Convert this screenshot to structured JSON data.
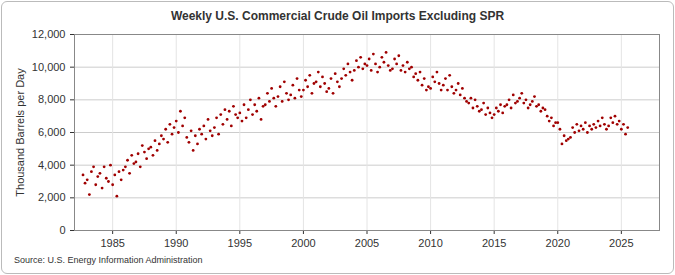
{
  "chart_data": {
    "type": "scatter",
    "title": "Weekly U.S. Commercial Crude Oil Imports Excluding SPR",
    "y_label": "Thousand Barrels per Day",
    "source": "Source: U.S. Energy Information Administration",
    "color": "#a00000",
    "marker": "circle",
    "grid": true,
    "xlim": [
      1982,
      2028
    ],
    "xticks": [
      1985,
      1990,
      1995,
      2000,
      2005,
      2010,
      2015,
      2020,
      2025
    ],
    "ylim": [
      0,
      12000
    ],
    "yticks": [
      0,
      {
        "value": 2000,
        "label": "2,000"
      },
      {
        "value": 4000,
        "label": "4,000"
      },
      {
        "value": 6000,
        "label": "6,000"
      },
      {
        "value": 8000,
        "label": "8,000"
      },
      {
        "value": 10000,
        "label": "10,000"
      },
      {
        "value": 12000,
        "label": "12,000"
      }
    ],
    "x": [
      1982.67,
      1982.83,
      1983,
      1983.17,
      1983.33,
      1983.5,
      1983.67,
      1983.83,
      1984,
      1984.17,
      1984.33,
      1984.5,
      1984.67,
      1984.83,
      1985,
      1985.17,
      1985.33,
      1985.5,
      1985.67,
      1985.83,
      1986,
      1986.17,
      1986.33,
      1986.5,
      1986.67,
      1986.83,
      1987,
      1987.17,
      1987.33,
      1987.5,
      1987.67,
      1987.83,
      1988,
      1988.17,
      1988.33,
      1988.5,
      1988.67,
      1988.83,
      1989,
      1989.17,
      1989.33,
      1989.5,
      1989.67,
      1989.83,
      1990,
      1990.17,
      1990.33,
      1990.5,
      1990.67,
      1990.83,
      1991,
      1991.17,
      1991.33,
      1991.5,
      1991.67,
      1991.83,
      1992,
      1992.17,
      1992.33,
      1992.5,
      1992.67,
      1992.83,
      1993,
      1993.17,
      1993.33,
      1993.5,
      1993.67,
      1993.83,
      1994,
      1994.17,
      1994.33,
      1994.5,
      1994.67,
      1994.83,
      1995,
      1995.17,
      1995.33,
      1995.5,
      1995.67,
      1995.83,
      1996,
      1996.17,
      1996.33,
      1996.5,
      1996.67,
      1996.83,
      1997,
      1997.17,
      1997.33,
      1997.5,
      1997.67,
      1997.83,
      1998,
      1998.17,
      1998.33,
      1998.5,
      1998.67,
      1998.83,
      1999,
      1999.17,
      1999.33,
      1999.5,
      1999.67,
      1999.83,
      2000,
      2000.17,
      2000.33,
      2000.5,
      2000.67,
      2000.83,
      2001,
      2001.17,
      2001.33,
      2001.5,
      2001.67,
      2001.83,
      2002,
      2002.17,
      2002.33,
      2002.5,
      2002.67,
      2002.83,
      2003,
      2003.17,
      2003.33,
      2003.5,
      2003.67,
      2003.83,
      2004,
      2004.17,
      2004.33,
      2004.5,
      2004.67,
      2004.83,
      2005,
      2005.17,
      2005.33,
      2005.5,
      2005.67,
      2005.83,
      2006,
      2006.17,
      2006.33,
      2006.5,
      2006.67,
      2006.83,
      2007,
      2007.17,
      2007.33,
      2007.5,
      2007.67,
      2007.83,
      2008,
      2008.17,
      2008.33,
      2008.5,
      2008.67,
      2008.83,
      2009,
      2009.17,
      2009.33,
      2009.5,
      2009.67,
      2009.83,
      2010,
      2010.17,
      2010.33,
      2010.5,
      2010.67,
      2010.83,
      2011,
      2011.17,
      2011.33,
      2011.5,
      2011.67,
      2011.83,
      2012,
      2012.17,
      2012.33,
      2012.5,
      2012.67,
      2012.83,
      2013,
      2013.17,
      2013.33,
      2013.5,
      2013.67,
      2013.83,
      2014,
      2014.17,
      2014.33,
      2014.5,
      2014.67,
      2014.83,
      2015,
      2015.17,
      2015.33,
      2015.5,
      2015.67,
      2015.83,
      2016,
      2016.17,
      2016.33,
      2016.5,
      2016.67,
      2016.83,
      2017,
      2017.17,
      2017.33,
      2017.5,
      2017.67,
      2017.83,
      2018,
      2018.17,
      2018.33,
      2018.5,
      2018.67,
      2018.83,
      2019,
      2019.17,
      2019.33,
      2019.5,
      2019.67,
      2019.83,
      2020,
      2020.17,
      2020.33,
      2020.5,
      2020.67,
      2020.83,
      2021,
      2021.17,
      2021.33,
      2021.5,
      2021.67,
      2021.83,
      2022,
      2022.17,
      2022.33,
      2022.5,
      2022.67,
      2022.83,
      2023,
      2023.17,
      2023.33,
      2023.5,
      2023.67,
      2023.83,
      2024,
      2024.17,
      2024.33,
      2024.5,
      2024.67,
      2024.83,
      2025,
      2025.17,
      2025.33,
      2025.5
    ],
    "values": [
      3400,
      2900,
      3100,
      2200,
      3600,
      3900,
      2800,
      3300,
      3500,
      2600,
      3900,
      3200,
      3000,
      4000,
      2800,
      3400,
      2100,
      3600,
      3100,
      3700,
      3900,
      4300,
      3500,
      4600,
      4100,
      4200,
      4700,
      3900,
      5200,
      4800,
      4400,
      5000,
      5100,
      4600,
      5500,
      4900,
      5300,
      5800,
      5600,
      6200,
      5400,
      6500,
      5900,
      6300,
      6700,
      6000,
      7300,
      6400,
      6900,
      5700,
      5400,
      6100,
      4900,
      5800,
      5300,
      6200,
      5900,
      6400,
      5600,
      6800,
      6100,
      5800,
      6300,
      6900,
      5900,
      7100,
      6500,
      7400,
      6800,
      7300,
      6400,
      7600,
      7100,
      6900,
      7200,
      6700,
      7700,
      6900,
      7400,
      8000,
      7100,
      7700,
      7300,
      8100,
      6800,
      7600,
      7700,
      8400,
      7900,
      8700,
      8100,
      7600,
      8200,
      8800,
      7900,
      9100,
      8400,
      8000,
      8300,
      8900,
      8100,
      9300,
      8600,
      8200,
      8600,
      9200,
      8800,
      9500,
      8400,
      9000,
      9100,
      9700,
      8800,
      9400,
      9000,
      8500,
      8700,
      9300,
      8400,
      9600,
      9100,
      8800,
      9300,
      9900,
      9500,
      10200,
      9700,
      9200,
      9800,
      10400,
      10000,
      10600,
      9900,
      10200,
      10100,
      10500,
      9800,
      10800,
      10200,
      9700,
      10000,
      10600,
      10300,
      10900,
      10100,
      9800,
      9900,
      10500,
      10200,
      10700,
      9800,
      10100,
      9700,
      10300,
      9900,
      10000,
      9400,
      9600,
      9200,
      9700,
      8900,
      9300,
      8600,
      8800,
      8700,
      9400,
      9100,
      9700,
      9000,
      8600,
      8900,
      9300,
      8600,
      9500,
      8800,
      8400,
      8600,
      9000,
      8300,
      8700,
      8100,
      7900,
      7800,
      8100,
      7500,
      8000,
      7600,
      7300,
      7400,
      7800,
      7100,
      7500,
      7200,
      6900,
      7100,
      7500,
      7300,
      7700,
      7200,
      7600,
      7700,
      8000,
      7500,
      8300,
      7800,
      7900,
      8100,
      8400,
      7800,
      8000,
      7500,
      7700,
      7900,
      8200,
      7600,
      7700,
      7300,
      7500,
      7400,
      7000,
      6700,
      6900,
      6400,
      6600,
      6600,
      6200,
      5300,
      5800,
      5500,
      5600,
      5700,
      6300,
      6000,
      6500,
      6100,
      6400,
      6200,
      6600,
      6000,
      6400,
      6200,
      6500,
      6300,
      6700,
      6400,
      6900,
      6500,
      6200,
      6400,
      6900,
      6600,
      7000,
      6500,
      6700,
      6200,
      6500,
      5900,
      6300
    ]
  }
}
